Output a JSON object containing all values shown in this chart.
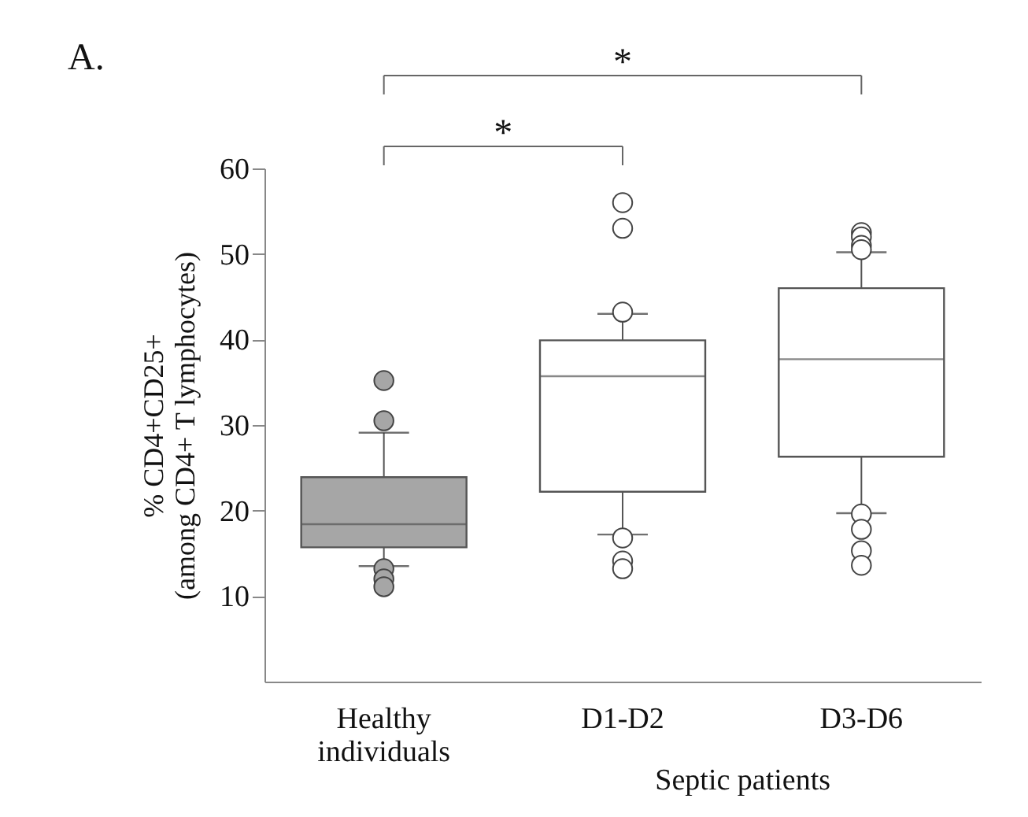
{
  "chart_data": {
    "type": "box",
    "title": "A.",
    "categories": [
      "Healthy\nindividuals",
      "D1-D2",
      "D3-D6"
    ],
    "boxes": [
      {
        "low": 13.5,
        "q1": 15.7,
        "median": 18.4,
        "q3": 23.9,
        "high": 29.1,
        "outliers": [
          35.2,
          30.5,
          13.2,
          12,
          11.1
        ]
      },
      {
        "low": 17.2,
        "q1": 22.2,
        "median": 35.7,
        "q3": 39.9,
        "high": 43.0,
        "outliers": [
          56,
          53,
          43.2,
          16.8,
          14.1,
          13.2
        ]
      },
      {
        "low": 19.7,
        "q1": 26.3,
        "median": 37.7,
        "q3": 46.0,
        "high": 50.2,
        "outliers": [
          52.5,
          52,
          51,
          50.5,
          19.6,
          17.8,
          15.3,
          13.6
        ]
      }
    ],
    "colors": [
      "#a6a6a6",
      "#ffffff",
      "#ffffff"
    ],
    "xlabel": "Septic patients",
    "ylabel": "% CD4+CD25+\n(among CD4+ T lymphocytes)",
    "ylim": [
      0,
      60
    ],
    "yticks": [
      10,
      20,
      30,
      40,
      50,
      60
    ],
    "grid": false,
    "annotations": [
      "*",
      "*"
    ]
  }
}
